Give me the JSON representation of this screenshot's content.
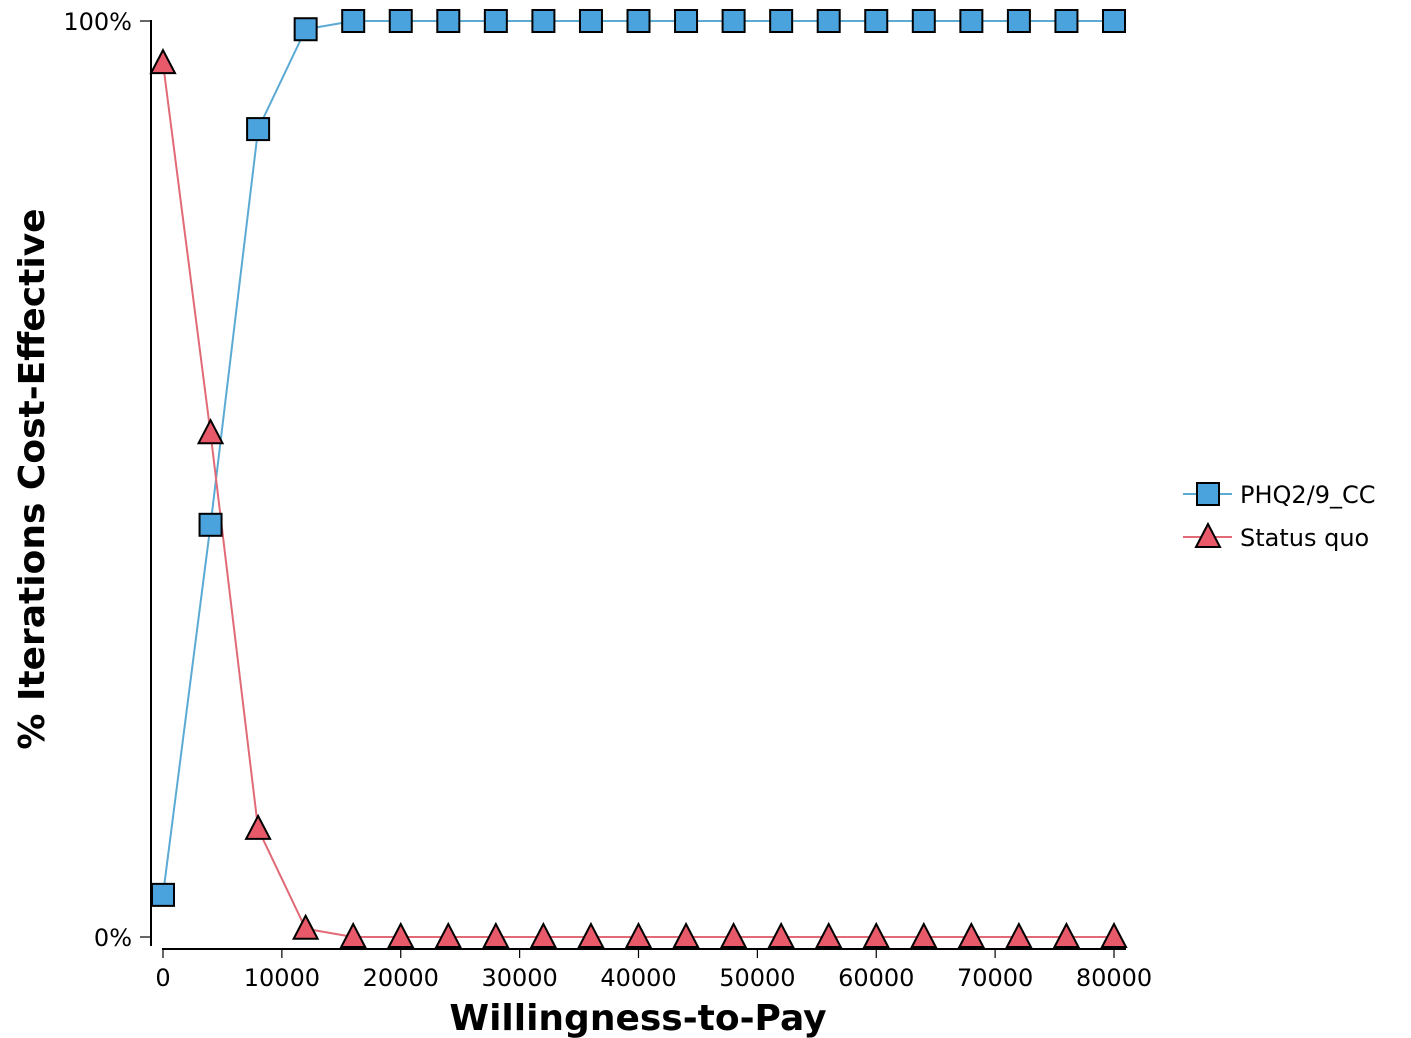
{
  "chart_data": {
    "type": "line",
    "xlabel": "Willingness-to-Pay",
    "ylabel": "% Iterations Cost-Effective",
    "xlim": [
      0,
      80000
    ],
    "ylim": [
      0,
      100
    ],
    "x_ticks": [
      "0",
      "10000",
      "20000",
      "30000",
      "40000",
      "50000",
      "60000",
      "70000",
      "80000"
    ],
    "y_ticks": [
      "0%",
      "100%"
    ],
    "legend_position": "right",
    "x": [
      0,
      4000,
      8000,
      12000,
      16000,
      20000,
      24000,
      28000,
      32000,
      36000,
      40000,
      44000,
      48000,
      52000,
      56000,
      60000,
      64000,
      68000,
      72000,
      76000,
      80000
    ],
    "series": [
      {
        "name": "PHQ2/9_CC",
        "marker": "square",
        "color": "#4aa3dc",
        "line_color": "#5aaad4",
        "values": [
          4.6,
          45,
          88.2,
          99.1,
          100,
          100,
          100,
          100,
          100,
          100,
          100,
          100,
          100,
          100,
          100,
          100,
          100,
          100,
          100,
          100,
          100
        ]
      },
      {
        "name": "Status quo",
        "marker": "triangle",
        "color": "#e85a6a",
        "line_color": "#e06a76",
        "values": [
          95.4,
          55,
          11.8,
          0.9,
          0,
          0,
          0,
          0,
          0,
          0,
          0,
          0,
          0,
          0,
          0,
          0,
          0,
          0,
          0,
          0,
          0
        ]
      }
    ]
  }
}
